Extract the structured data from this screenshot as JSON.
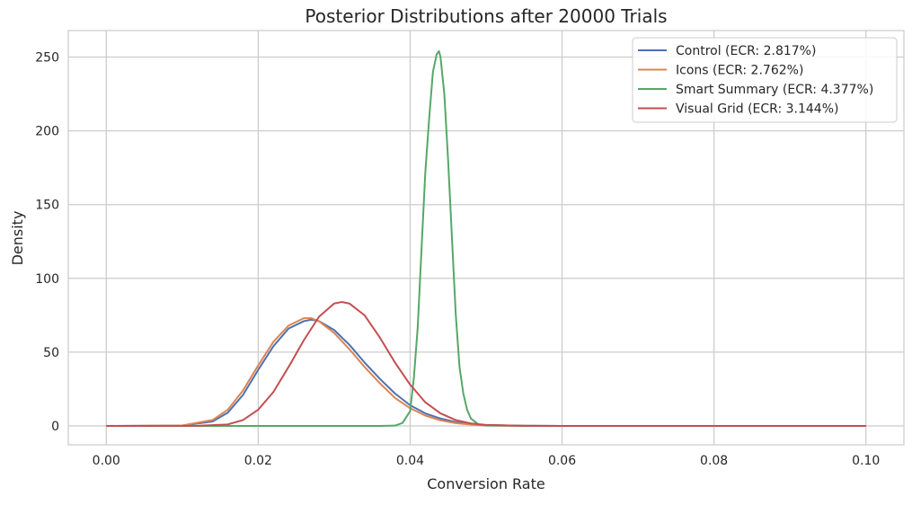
{
  "chart_data": {
    "type": "line",
    "title": "Posterior Distributions after 20000 Trials",
    "xlabel": "Conversion Rate",
    "ylabel": "Density",
    "xlim": [
      -0.005,
      0.105
    ],
    "ylim": [
      -12.8,
      268
    ],
    "grid": true,
    "legend_position": "top-right",
    "xticks": [
      0.0,
      0.02,
      0.04,
      0.06,
      0.08,
      0.1
    ],
    "xtick_labels": [
      "0.00",
      "0.02",
      "0.04",
      "0.06",
      "0.08",
      "0.10"
    ],
    "yticks": [
      0,
      50,
      100,
      150,
      200,
      250
    ],
    "ytick_labels": [
      "0",
      "50",
      "100",
      "150",
      "200",
      "250"
    ],
    "series": [
      {
        "name": "Control (ECR: 2.817%)",
        "color": "#4c72b0",
        "x": [
          0.0,
          0.01,
          0.014,
          0.016,
          0.018,
          0.02,
          0.022,
          0.024,
          0.026,
          0.027,
          0.028,
          0.03,
          0.032,
          0.034,
          0.036,
          0.038,
          0.04,
          0.042,
          0.044,
          0.046,
          0.048,
          0.05,
          0.055,
          0.06,
          0.08,
          0.1
        ],
        "y": [
          0,
          0.2,
          3,
          9,
          21,
          38,
          54,
          66,
          71,
          72,
          71,
          65,
          55,
          43,
          32,
          22,
          14,
          8.5,
          5,
          2.6,
          1.3,
          0.6,
          0.1,
          0,
          0,
          0
        ]
      },
      {
        "name": "Icons (ECR: 2.762%)",
        "color": "#dd8452",
        "x": [
          0.0,
          0.01,
          0.014,
          0.016,
          0.018,
          0.02,
          0.022,
          0.024,
          0.026,
          0.027,
          0.028,
          0.03,
          0.032,
          0.034,
          0.036,
          0.038,
          0.04,
          0.042,
          0.044,
          0.046,
          0.048,
          0.05,
          0.055,
          0.06,
          0.08,
          0.1
        ],
        "y": [
          0,
          0.3,
          4,
          11,
          24,
          41,
          57,
          68,
          73,
          73,
          71,
          63,
          52,
          40,
          29,
          19,
          12,
          7,
          3.8,
          1.9,
          0.9,
          0.4,
          0.05,
          0,
          0,
          0
        ]
      },
      {
        "name": "Smart Summary (ECR: 4.377%)",
        "color": "#55a868",
        "x": [
          0.0,
          0.036,
          0.038,
          0.039,
          0.04,
          0.0405,
          0.041,
          0.0415,
          0.042,
          0.0425,
          0.043,
          0.0435,
          0.0438,
          0.044,
          0.0445,
          0.045,
          0.0455,
          0.046,
          0.0465,
          0.047,
          0.0475,
          0.048,
          0.049,
          0.05,
          0.06,
          0.1
        ],
        "y": [
          0,
          0,
          0.2,
          2,
          10,
          33,
          67,
          120,
          172,
          208,
          240,
          252,
          254,
          250,
          225,
          180,
          128,
          76,
          40,
          22,
          11,
          5,
          1,
          0.2,
          0,
          0
        ]
      },
      {
        "name": "Visual Grid (ECR: 3.144%)",
        "color": "#c44e52",
        "x": [
          0.0,
          0.012,
          0.016,
          0.018,
          0.02,
          0.022,
          0.024,
          0.026,
          0.028,
          0.03,
          0.031,
          0.032,
          0.034,
          0.036,
          0.038,
          0.04,
          0.042,
          0.044,
          0.046,
          0.048,
          0.05,
          0.055,
          0.06,
          0.08,
          0.1
        ],
        "y": [
          0,
          0.1,
          1,
          4,
          11,
          23,
          40,
          58,
          74,
          83,
          84,
          83,
          75,
          60,
          43,
          28,
          16,
          8.5,
          4,
          1.7,
          0.7,
          0.1,
          0,
          0,
          0
        ]
      }
    ]
  }
}
